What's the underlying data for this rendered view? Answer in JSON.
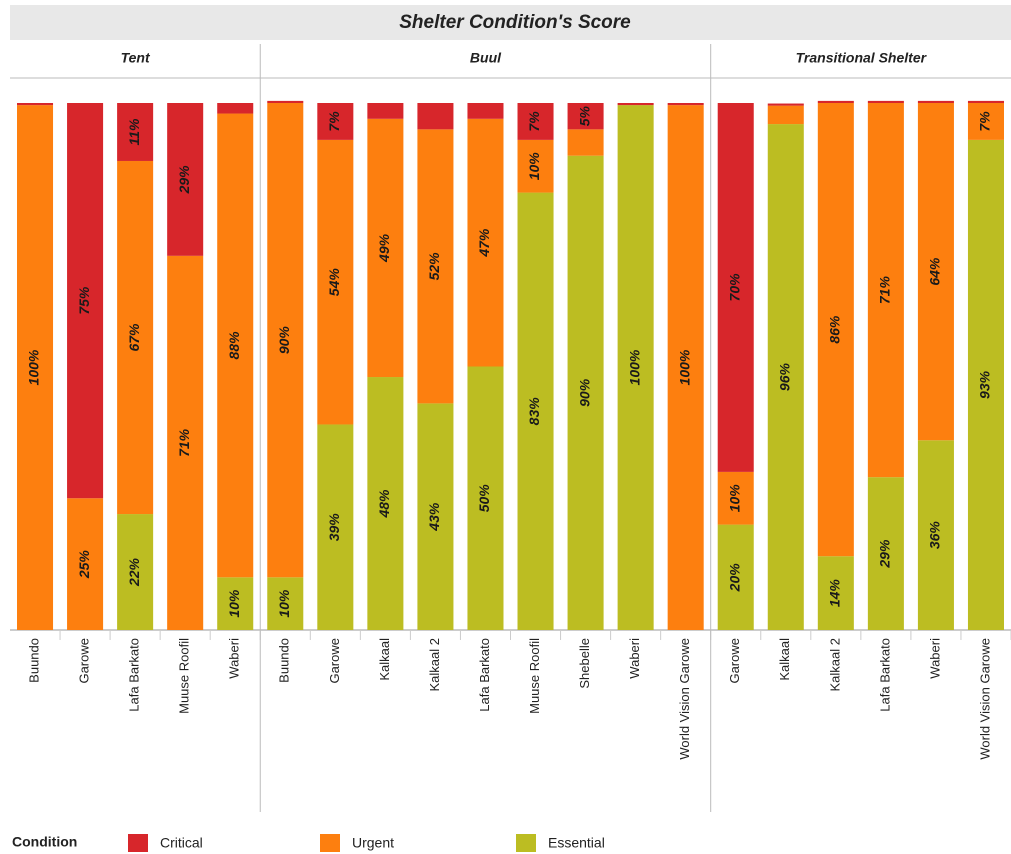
{
  "chart_data": {
    "type": "bar",
    "stacked": true,
    "title": "Shelter Condition's Score",
    "legend_title": "Condition",
    "groups": [
      {
        "name": "Tent",
        "categories": [
          "Buundo",
          "Garowe",
          "Lafa Barkato",
          "Muuse Roofil",
          "Waberi"
        ]
      },
      {
        "name": "Buul",
        "categories": [
          "Buundo",
          "Garowe",
          "Kalkaal",
          "Kalkaal 2",
          "Lafa Barkato",
          "Muuse Roofil",
          "Shebelle",
          "Waberi",
          "World Vision Garowe"
        ]
      },
      {
        "name": "Transitional Shelter",
        "categories": [
          "Garowe",
          "Kalkaal",
          "Kalkaal 2",
          "Lafa Barkato",
          "Waberi",
          "World Vision Garowe"
        ]
      }
    ],
    "series": [
      {
        "name": "Critical",
        "color": "#d7262b",
        "values": [
          [
            0.4,
            75,
            11,
            29,
            2
          ],
          [
            0.4,
            7,
            3,
            5,
            3,
            7,
            5,
            0.4,
            0.4
          ],
          [
            70,
            0.4,
            0.4,
            0.4,
            0.4,
            0.4
          ]
        ],
        "value_labels": [
          [
            null,
            "75%",
            "11%",
            "29%",
            null
          ],
          [
            null,
            "7%",
            null,
            null,
            null,
            "7%",
            "5%",
            null,
            null
          ],
          [
            "70%",
            null,
            null,
            null,
            null,
            null
          ]
        ]
      },
      {
        "name": "Urgent",
        "color": "#fd7f0f",
        "values": [
          [
            99.6,
            25,
            67,
            71,
            88
          ],
          [
            90,
            54,
            49,
            52,
            47,
            10,
            5,
            0,
            99.6
          ],
          [
            10,
            3.5,
            86,
            71,
            64,
            7
          ]
        ],
        "value_labels": [
          [
            "100%",
            "25%",
            "67%",
            "71%",
            "88%"
          ],
          [
            "90%",
            "54%",
            "49%",
            "52%",
            "47%",
            "10%",
            null,
            null,
            "100%"
          ],
          [
            "10%",
            null,
            "86%",
            "71%",
            "64%",
            "7%"
          ]
        ]
      },
      {
        "name": "Essential",
        "color": "#bcbd22",
        "values": [
          [
            0,
            0,
            22,
            0,
            10
          ],
          [
            10,
            39,
            48,
            43,
            50,
            83,
            90,
            99.6,
            0
          ],
          [
            20,
            96,
            14,
            29,
            36,
            93
          ]
        ],
        "value_labels": [
          [
            null,
            null,
            "22%",
            null,
            "10%"
          ],
          [
            "10%",
            "39%",
            "48%",
            "43%",
            "50%",
            "83%",
            "90%",
            "100%",
            null
          ],
          [
            "20%",
            "96%",
            "14%",
            "29%",
            "36%",
            "93%"
          ]
        ]
      }
    ],
    "ylim": [
      0,
      100
    ]
  }
}
